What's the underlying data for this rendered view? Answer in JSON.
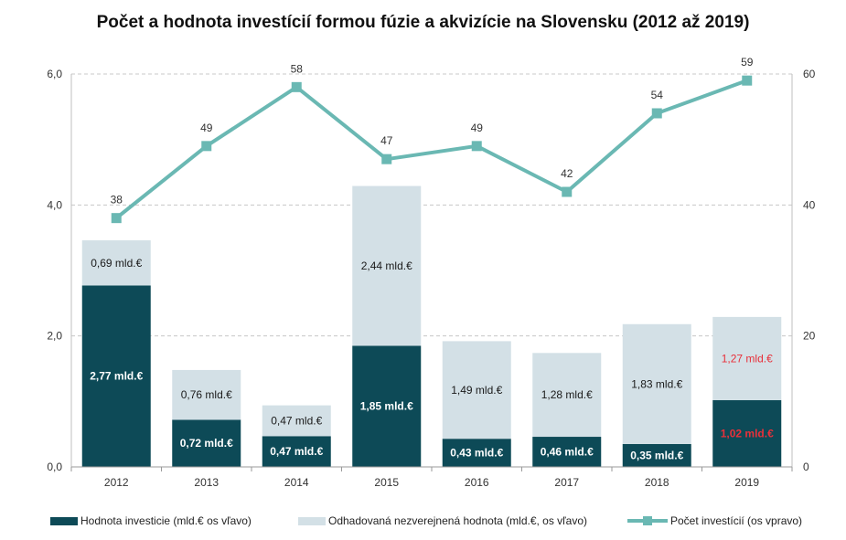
{
  "chart_data": {
    "type": "bar",
    "title": "Počet a hodnota investícií formou fúzie a akvizície na Slovensku (2012 až 2019)",
    "categories": [
      "2012",
      "2013",
      "2014",
      "2015",
      "2016",
      "2017",
      "2018",
      "2019"
    ],
    "series": [
      {
        "name": "Hodnota investicie (mld.€ os vľavo)",
        "type": "bar",
        "axis": "left",
        "color": "#0d4a57",
        "values": [
          2.77,
          0.72,
          0.47,
          1.85,
          0.43,
          0.46,
          0.35,
          1.02
        ],
        "labels": [
          "2,77 mld.€",
          "0,72 mld.€",
          "0,47 mld.€",
          "1,85 mld.€",
          "0,43 mld.€",
          "0,46 mld.€",
          "0,35 mld.€",
          "1,02 mld.€"
        ]
      },
      {
        "name": "Odhadovaná nezverejnená hodnota (mld.€, os vľavo)",
        "type": "bar",
        "axis": "left",
        "color": "#d3e0e6",
        "values": [
          0.69,
          0.76,
          0.47,
          2.44,
          1.49,
          1.28,
          1.83,
          1.27
        ],
        "labels": [
          "0,69 mld.€",
          "0,76 mld.€",
          "0,47 mld.€",
          "2,44 mld.€",
          "1,49 mld.€",
          "1,28 mld.€",
          "1,83 mld.€",
          "1,27 mld.€"
        ]
      },
      {
        "name": "Počet investícií (os vpravo)",
        "type": "line",
        "axis": "right",
        "color": "#6ab8b3",
        "values": [
          38,
          49,
          58,
          47,
          49,
          42,
          54,
          59
        ],
        "labels": [
          "38",
          "49",
          "58",
          "47",
          "49",
          "42",
          "54",
          "59"
        ]
      }
    ],
    "y_left": {
      "ylim": [
        0,
        6
      ],
      "ticks": [
        "0,0",
        "2,0",
        "4,0",
        "6,0"
      ]
    },
    "y_right": {
      "ylim": [
        0,
        60
      ],
      "ticks": [
        "0",
        "20",
        "40",
        "60"
      ]
    },
    "grid": true,
    "legend": "bottom",
    "highlight_color": "#e8303a",
    "highlight_category": "2019"
  }
}
